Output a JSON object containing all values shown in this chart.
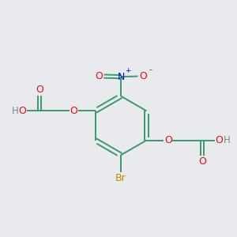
{
  "bg_color": "#e8eaed",
  "bond_color": "#3a9a6e",
  "atom_colors": {
    "O": "#e01010",
    "N": "#1010cc",
    "Br": "#cc8800",
    "C": "#3a9a6e",
    "H": "#6a9090"
  },
  "figsize": [
    3.0,
    3.0
  ],
  "dpi": 100
}
